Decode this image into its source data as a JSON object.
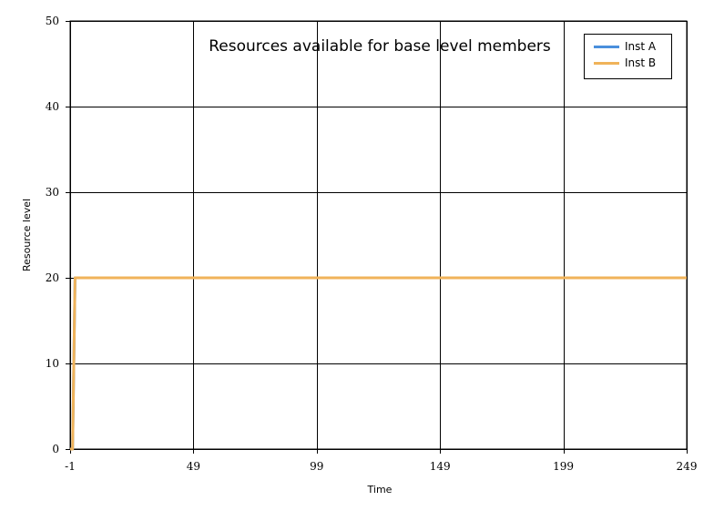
{
  "chart_data": {
    "type": "line",
    "title": "Resources available for base level members",
    "xlabel": "Time",
    "ylabel": "Resource level",
    "xlim": [
      -1,
      249
    ],
    "ylim": [
      0,
      50
    ],
    "x_ticks": [
      "-1",
      "49",
      "99",
      "149",
      "199",
      "249"
    ],
    "y_ticks": [
      "0",
      "10",
      "20",
      "30",
      "40",
      "50"
    ],
    "grid": true,
    "legend_position": "top-right",
    "series": [
      {
        "name": "Inst A",
        "color": "#4a8fdc",
        "x": [
          -1,
          0,
          1,
          249
        ],
        "y": [
          0,
          0,
          20,
          20
        ]
      },
      {
        "name": "Inst B",
        "color": "#f0b35a",
        "x": [
          -1,
          0,
          1,
          249
        ],
        "y": [
          0,
          0,
          20,
          20
        ]
      }
    ]
  }
}
